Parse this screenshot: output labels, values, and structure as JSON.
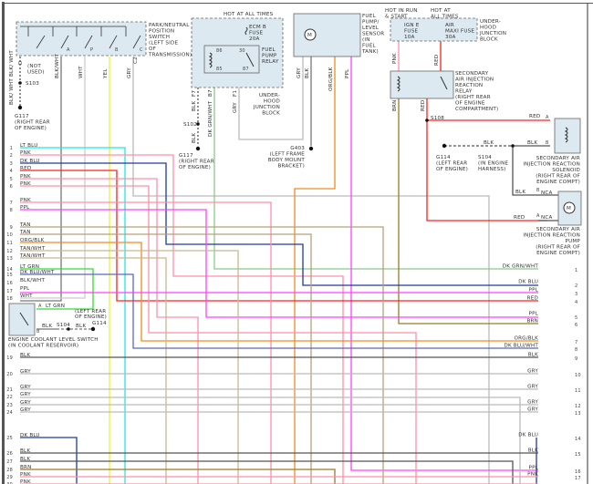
{
  "components": {
    "pn_switch": [
      "PARK/NEUTRAL",
      "POSITION",
      "SWITCH",
      "(LEFT SIDE",
      "OF",
      "TRANSMISSION)"
    ],
    "pn_switch_pins": [
      "A",
      "P",
      "B",
      "C"
    ],
    "hot_all_times_1": "HOT AT ALL TIMES",
    "ecm_fuse": [
      "ECM B",
      "FUSE",
      "20A"
    ],
    "fuel_pump_relay": [
      "FUEL",
      "PUMP",
      "RELAY"
    ],
    "relay_terminals": [
      "86",
      "85",
      "30",
      "87"
    ],
    "underhood_block_1": [
      "UNDER-",
      "HOOD",
      "JUNCTION",
      "BLOCK"
    ],
    "fuel_pump_sensor": [
      "FUEL",
      "PUMP/",
      "LEVEL",
      "SENSOR",
      "(IN",
      "FUEL",
      "TANK)"
    ],
    "motor_symbol": "M",
    "hot_run_start": [
      "HOT IN RUN",
      "& START"
    ],
    "hot_all_times_2": [
      "HOT AT",
      "ALL TIMES"
    ],
    "ign_fuse": [
      "IGN E",
      "FUSE",
      "10A"
    ],
    "air_fuse": [
      "AIR",
      "MAXI FUSE",
      "30A"
    ],
    "underhood_block_2": [
      "UNDER-",
      "HOOD",
      "JUNCTION",
      "BLOCK"
    ],
    "sec_air_relay": [
      "SECONDARY",
      "AIR INJECTION",
      "REACTION",
      "RELAY",
      "(RIGHT REAR",
      "OF ENGINE",
      "COMPARTMENT)"
    ],
    "sec_air_solenoid": [
      "SECONDARY AIR",
      "INJECTION REACTION",
      "SOLENOID",
      "(RIGHT REAR OF",
      "ENGINE COMPT)"
    ],
    "sec_air_pump": [
      "SECONDARY AIR",
      "INJECTION REACTION",
      "PUMP",
      "(RIGHT REAR OF",
      "ENGINE COMPT)"
    ],
    "coolant_switch": [
      "ENGINE COOLANT LEVEL SWITCH",
      "(IN COOLANT RESERVOIR)"
    ],
    "coolant_switch_ground": [
      "(LEFT REAR",
      "OF ENGINE)"
    ]
  },
  "splices_grounds": {
    "s103": "S103",
    "g117_a": [
      "G117",
      "(RIGHT REAR",
      "OF ENGINE)"
    ],
    "s102": "S102",
    "g117_b": [
      "G117",
      "(RIGHT REAR",
      "OF ENGINE)"
    ],
    "g403": [
      "G403",
      "(LEFT FRAME",
      "BODY MOUNT",
      "BRACKET)"
    ],
    "s108": "S108",
    "g114_a": [
      "G114",
      "(LEFT REAR",
      "OF ENGINE)"
    ],
    "s104_a": [
      "S104",
      "(IN ENGINE",
      "HARNESS)"
    ],
    "s104_b": "S104",
    "g114_b": "G114"
  },
  "top_wire_labels": {
    "blk_wht_d": "BLK/ WHT",
    "d": "D",
    "not_used": [
      "(NOT",
      "USED)"
    ],
    "blk_wht_a": "BLK/WHT",
    "wht_c": "WHT",
    "yel_d": "YEL",
    "gry_b": "GRY",
    "blk_wht_lower": "BLK/ WHT",
    "blk_f7": "BLK",
    "dk_grn_wht_b7": "DK GRN/WHT",
    "gry_f1": "GRY",
    "gry_b_pump": "GRY",
    "blk_c_pump": "BLK",
    "org_blk_d": "ORG/BLK",
    "ppl_a": "PPL",
    "pnk_e9": "PNK",
    "red_a": "RED",
    "brn": "BRN",
    "red": "RED",
    "red_sol": "RED",
    "blk_sol": "BLK",
    "blk_dash": "BLK",
    "blk_pump": "BLK",
    "red_pump": "RED",
    "nca": "NCA",
    "lt_grn_sw": "LT GRN",
    "blk_sw": "BLK",
    "blk_sw2": "BLK",
    "pin_a": "A",
    "pin_b": "B",
    "f7": "F7",
    "b7": "B7",
    "f1": "F1",
    "c2": "C2"
  },
  "left_connector": [
    {
      "pin": "1",
      "color": "LT BLU"
    },
    {
      "pin": "2",
      "color": "PNK"
    },
    {
      "pin": "3",
      "color": "DK BLU"
    },
    {
      "pin": "4",
      "color": "RED"
    },
    {
      "pin": "5",
      "color": "PNK"
    },
    {
      "pin": "6",
      "color": "PNK"
    },
    {
      "pin": "7",
      "color": "PNK"
    },
    {
      "pin": "8",
      "color": "PPL"
    },
    {
      "pin": "9",
      "color": "TAN"
    },
    {
      "pin": "10",
      "color": "TAN"
    },
    {
      "pin": "11",
      "color": "ORG/BLK"
    },
    {
      "pin": "12",
      "color": "TAN/WHT"
    },
    {
      "pin": "13",
      "color": "TAN/WHT"
    },
    {
      "pin": "14",
      "color": "LT GRN"
    },
    {
      "pin": "15",
      "color": "DK BLU/WHT"
    },
    {
      "pin": "16",
      "color": "BLK/WHT"
    },
    {
      "pin": "17",
      "color": "PPL"
    },
    {
      "pin": "18",
      "color": "WHT"
    },
    {
      "pin": "19",
      "color": "BLK"
    },
    {
      "pin": "20",
      "color": "GRY"
    },
    {
      "pin": "21",
      "color": "GRY"
    },
    {
      "pin": "22",
      "color": "GRY"
    },
    {
      "pin": "23",
      "color": "GRY"
    },
    {
      "pin": "24",
      "color": "GRY"
    },
    {
      "pin": "25",
      "color": "DK BLU"
    },
    {
      "pin": "26",
      "color": "BLK"
    },
    {
      "pin": "27",
      "color": "BLK"
    },
    {
      "pin": "28",
      "color": "BRN"
    },
    {
      "pin": "29",
      "color": "PNK"
    },
    {
      "pin": "30",
      "color": "PNK"
    }
  ],
  "right_connector": [
    {
      "pin": "1",
      "color": "DK GRN/WHT"
    },
    {
      "pin": "2",
      "color": "DK BLU"
    },
    {
      "pin": "3",
      "color": "PPL"
    },
    {
      "pin": "4",
      "color": "RED"
    },
    {
      "pin": "5",
      "color": "PPL"
    },
    {
      "pin": "6",
      "color": "BRN"
    },
    {
      "pin": "7",
      "color": "ORG/BLK"
    },
    {
      "pin": "8",
      "color": "DK BLU/WHT"
    },
    {
      "pin": "9",
      "color": "BLK"
    },
    {
      "pin": "10",
      "color": "GRY"
    },
    {
      "pin": "11",
      "color": "GRY"
    },
    {
      "pin": "12",
      "color": "GRY"
    },
    {
      "pin": "13",
      "color": "GRY"
    },
    {
      "pin": "14",
      "color": "DK BLU"
    },
    {
      "pin": "15",
      "color": "BLK"
    },
    {
      "pin": "16",
      "color": "PPL"
    },
    {
      "pin": "17",
      "color": "PNK"
    }
  ],
  "wire_colors": {
    "LT BLU": "#22e5ea",
    "PNK": "#ff8fa8",
    "DK BLU": "#1f3a9e",
    "RED": "#ff2020",
    "PPL": "#ff40ff",
    "TAN": "#b3a27a",
    "ORG/BLK": "#f08a20",
    "TAN/WHT": "#c8b890",
    "LT GRN": "#33dd33",
    "DK BLU/WHT": "#5a6ab8",
    "BLK/WHT": "#777777",
    "WHT": "#cccccc",
    "BLK": "#555555",
    "GRY": "#bbbbbb",
    "BRN": "#9a7a2a",
    "YEL": "#f5f030",
    "DK GRN/WHT": "#88cc88"
  }
}
